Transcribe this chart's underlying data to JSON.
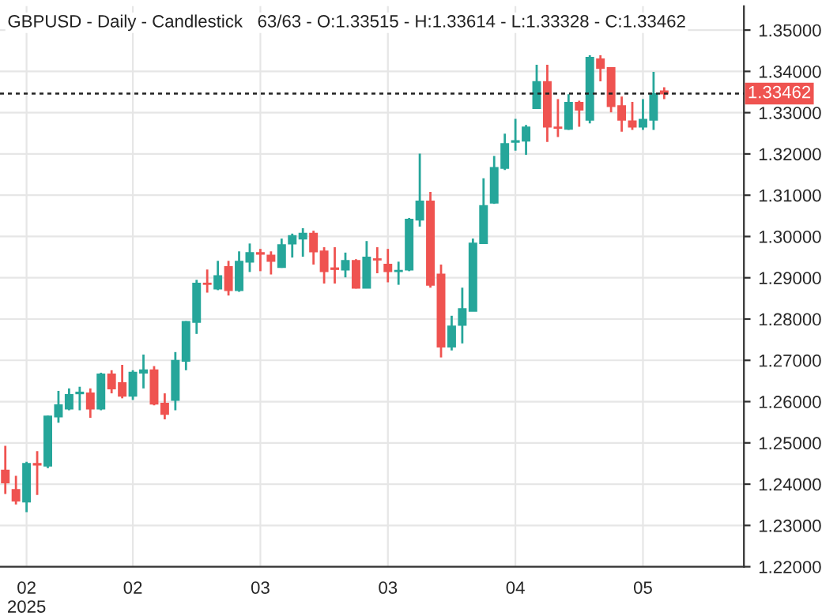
{
  "chart_data": {
    "type": "candlestick",
    "title": "GBPUSD - Daily - Candlestick   63/63 - O:1.33515 - H:1.33614 - L:1.33328 - C:1.33462",
    "categories": [
      null,
      null,
      "02\n2025",
      null,
      null,
      null,
      null,
      null,
      null,
      null,
      null,
      null,
      "02",
      null,
      null,
      null,
      null,
      null,
      null,
      null,
      null,
      null,
      null,
      null,
      "03",
      null,
      null,
      null,
      null,
      null,
      null,
      null,
      null,
      null,
      null,
      null,
      "03",
      null,
      null,
      null,
      null,
      null,
      null,
      null,
      null,
      null,
      null,
      null,
      "04",
      null,
      null,
      null,
      null,
      null,
      null,
      null,
      null,
      null,
      null,
      null,
      "05",
      null,
      null
    ],
    "ohlc": [
      [
        1.2433,
        1.2493,
        1.2376,
        1.2404
      ],
      [
        1.2386,
        1.242,
        1.2351,
        1.236
      ],
      [
        1.2358,
        1.2454,
        1.2332,
        1.2449
      ],
      [
        1.2449,
        1.248,
        1.2374,
        1.2447
      ],
      [
        1.2445,
        1.2566,
        1.2439,
        1.2564
      ],
      [
        1.2564,
        1.2626,
        1.2549,
        1.2591
      ],
      [
        1.2583,
        1.2632,
        1.2579,
        1.2616
      ],
      [
        1.262,
        1.2636,
        1.2579,
        1.2622
      ],
      [
        1.262,
        1.2632,
        1.2561,
        1.2583
      ],
      [
        1.2583,
        1.267,
        1.2579,
        1.2666
      ],
      [
        1.2666,
        1.2676,
        1.262,
        1.2632
      ],
      [
        1.2645,
        1.2689,
        1.2608,
        1.2614
      ],
      [
        1.2614,
        1.2676,
        1.2604,
        1.267
      ],
      [
        1.267,
        1.2714,
        1.2632,
        1.2676
      ],
      [
        1.2676,
        1.2686,
        1.2591,
        1.2595
      ],
      [
        1.2595,
        1.262,
        1.2557,
        1.257
      ],
      [
        1.2604,
        1.272,
        1.2579,
        1.2699
      ],
      [
        1.2699,
        1.2795,
        1.2676,
        1.2793
      ],
      [
        1.2793,
        1.2895,
        1.2764,
        1.2886
      ],
      [
        1.2886,
        1.292,
        1.2864,
        1.2885
      ],
      [
        1.2874,
        1.2941,
        1.287,
        1.2904
      ],
      [
        1.2926,
        1.2941,
        1.2857,
        1.287
      ],
      [
        1.287,
        1.2964,
        1.2866,
        1.2939
      ],
      [
        1.2939,
        1.2983,
        1.2914,
        1.296
      ],
      [
        1.296,
        1.297,
        1.2916,
        1.2958
      ],
      [
        1.2954,
        1.2964,
        1.2908,
        1.2941
      ],
      [
        1.2926,
        1.2995,
        1.2924,
        1.2979
      ],
      [
        1.2983,
        1.3007,
        1.2949,
        1.3001
      ],
      [
        1.2995,
        1.302,
        1.2951,
        1.3007
      ],
      [
        1.3007,
        1.3014,
        1.2932,
        1.2964
      ],
      [
        1.2964,
        1.2974,
        1.2886,
        1.2916
      ],
      [
        1.2923,
        1.2974,
        1.2886,
        1.2921
      ],
      [
        1.292,
        1.2961,
        1.2901,
        1.2941
      ],
      [
        1.2941,
        1.2945,
        1.2874,
        1.2876
      ],
      [
        1.2876,
        1.2989,
        1.2876,
        1.2949
      ],
      [
        1.2945,
        1.2974,
        1.2911,
        1.2944
      ],
      [
        1.2932,
        1.297,
        1.2889,
        1.2916
      ],
      [
        1.2916,
        1.2939,
        1.2883,
        1.2917
      ],
      [
        1.292,
        1.3045,
        1.2916,
        1.3041
      ],
      [
        1.3041,
        1.3201,
        1.3024,
        1.3085
      ],
      [
        1.3085,
        1.3108,
        1.2876,
        1.2883
      ],
      [
        1.2908,
        1.2932,
        1.2707,
        1.2733
      ],
      [
        1.2733,
        1.2808,
        1.2724,
        1.2782
      ],
      [
        1.2786,
        1.2876,
        1.2741,
        1.2824
      ],
      [
        1.282,
        1.2995,
        1.282,
        1.2983
      ],
      [
        1.2984,
        1.3141,
        1.2983,
        1.3074
      ],
      [
        1.3082,
        1.3195,
        1.3079,
        1.3166
      ],
      [
        1.3166,
        1.3249,
        1.3161,
        1.3224
      ],
      [
        1.3229,
        1.3285,
        1.3208,
        1.3231
      ],
      [
        1.3232,
        1.327,
        1.3198,
        1.3264
      ],
      [
        1.3311,
        1.3416,
        1.3311,
        1.3374
      ],
      [
        1.3374,
        1.3416,
        1.3229,
        1.3266
      ],
      [
        1.3264,
        1.3333,
        1.3241,
        1.3263
      ],
      [
        1.3261,
        1.3345,
        1.3258,
        1.3324
      ],
      [
        1.3324,
        1.3329,
        1.3266,
        1.3307
      ],
      [
        1.3283,
        1.3439,
        1.3274,
        1.3433
      ],
      [
        1.3429,
        1.3439,
        1.3376,
        1.3408
      ],
      [
        1.3408,
        1.3408,
        1.3301,
        1.3316
      ],
      [
        1.3316,
        1.3339,
        1.3254,
        1.3283
      ],
      [
        1.3279,
        1.3326,
        1.3258,
        1.3266
      ],
      [
        1.3266,
        1.3333,
        1.3258,
        1.3283
      ],
      [
        1.3283,
        1.3399,
        1.3258,
        1.3345
      ],
      [
        1.33515,
        1.33614,
        1.33328,
        1.33462
      ]
    ],
    "colors": [
      "#ef5350",
      "#ef5350",
      "#26a69a",
      "#ef5350",
      "#26a69a",
      "#26a69a",
      "#26a69a",
      "#26a69a",
      "#ef5350",
      "#26a69a",
      "#ef5350",
      "#ef5350",
      "#26a69a",
      "#26a69a",
      "#ef5350",
      "#ef5350",
      "#26a69a",
      "#26a69a",
      "#26a69a",
      "#ef5350",
      "#26a69a",
      "#ef5350",
      "#26a69a",
      "#26a69a",
      "#ef5350",
      "#ef5350",
      "#26a69a",
      "#26a69a",
      "#26a69a",
      "#ef5350",
      "#ef5350",
      "#ef5350",
      "#26a69a",
      "#ef5350",
      "#26a69a",
      "#ef5350",
      "#ef5350",
      "#26a69a",
      "#26a69a",
      "#26a69a",
      "#ef5350",
      "#ef5350",
      "#26a69a",
      "#26a69a",
      "#26a69a",
      "#26a69a",
      "#26a69a",
      "#26a69a",
      "#26a69a",
      "#26a69a",
      "#26a69a",
      "#ef5350",
      "#ef5350",
      "#26a69a",
      "#ef5350",
      "#26a69a",
      "#ef5350",
      "#ef5350",
      "#ef5350",
      "#ef5350",
      "#26a69a",
      "#26a69a",
      "#ef5350"
    ],
    "ylim": [
      1.22,
      1.3558
    ],
    "yticks": [
      {
        "value": 1.22,
        "label": "1.22000"
      },
      {
        "value": 1.23,
        "label": "1.23000"
      },
      {
        "value": 1.24,
        "label": "1.24000"
      },
      {
        "value": 1.25,
        "label": "1.25000"
      },
      {
        "value": 1.26,
        "label": "1.26000"
      },
      {
        "value": 1.27,
        "label": "1.27000"
      },
      {
        "value": 1.28,
        "label": "1.28000"
      },
      {
        "value": 1.29,
        "label": "1.29000"
      },
      {
        "value": 1.3,
        "label": "1.30000"
      },
      {
        "value": 1.31,
        "label": "1.31000"
      },
      {
        "value": 1.32,
        "label": "1.32000"
      },
      {
        "value": 1.33,
        "label": "1.33000"
      },
      {
        "value": 1.34,
        "label": "1.34000"
      },
      {
        "value": 1.35,
        "label": "1.35000"
      }
    ],
    "ref_lines": [
      {
        "axis": "y",
        "value": 1.33462,
        "label": "1.33462",
        "color": "#222222",
        "line_style": "dashed"
      }
    ],
    "grid": true
  }
}
